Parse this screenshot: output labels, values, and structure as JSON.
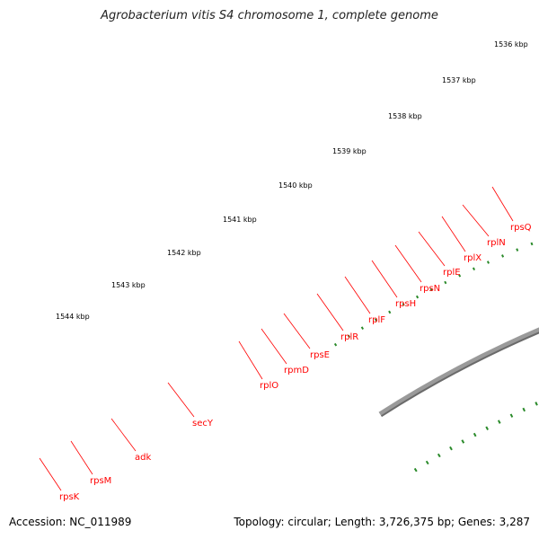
{
  "title": "Agrobacterium vitis S4 chromosome 1, complete genome",
  "footer": {
    "accession": "Accession: NC_011989",
    "summary": "Topology: circular; Length: 3,726,375 bp; Genes: 3,287"
  },
  "ticks": [
    {
      "label": "1536 kbp"
    },
    {
      "label": "1537 kbp"
    },
    {
      "label": "1538 kbp"
    },
    {
      "label": "1539 kbp"
    },
    {
      "label": "1540 kbp"
    },
    {
      "label": "1541 kbp"
    },
    {
      "label": "1542 kbp"
    },
    {
      "label": "1543 kbp"
    },
    {
      "label": "1544 kbp"
    }
  ],
  "genes": [
    {
      "name": "rpsQ"
    },
    {
      "name": "rplN"
    },
    {
      "name": "rplX"
    },
    {
      "name": "rplE"
    },
    {
      "name": "rpsN"
    },
    {
      "name": "rpsH"
    },
    {
      "name": "rplF"
    },
    {
      "name": "rplR"
    },
    {
      "name": "rpsE"
    },
    {
      "name": "rpmD"
    },
    {
      "name": "rplO"
    },
    {
      "name": "secY"
    },
    {
      "name": "adk"
    },
    {
      "name": "rpsM"
    },
    {
      "name": "rpsK"
    }
  ],
  "colors": {
    "cds_strand": "#ff0000",
    "cds_inner": "#f08888",
    "secY_inner": "#a6e830",
    "adk_inner": "#1ab2e8",
    "partial_inner": "#f5a623",
    "backbone": "#7f7f7f",
    "tick": "#2a8a2a",
    "label_line": "#ff0000"
  }
}
